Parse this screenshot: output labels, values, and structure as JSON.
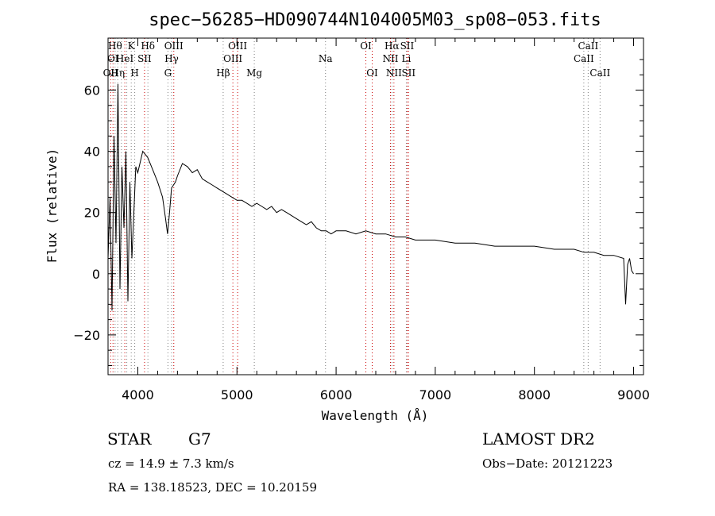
{
  "chart_data": {
    "type": "line",
    "title": "spec−56285−HD090744N104005M03_sp08−053.fits",
    "xlabel": "Wavelength (Å)",
    "ylabel": "Flux (relative)",
    "xlim": [
      3700,
      9100
    ],
    "ylim": [
      -33,
      77
    ],
    "xticks": [
      4000,
      5000,
      6000,
      7000,
      8000,
      9000
    ],
    "xtick_labels": [
      "4000",
      "5000",
      "6000",
      "7000",
      "8000",
      "9000"
    ],
    "yticks": [
      -20,
      0,
      20,
      40,
      60
    ],
    "ytick_labels": [
      "−20",
      "0",
      "20",
      "40",
      "60"
    ],
    "grid": false,
    "series": [
      {
        "x": [
          3700,
          3720,
          3740,
          3760,
          3780,
          3800,
          3820,
          3840,
          3860,
          3880,
          3900,
          3920,
          3940,
          3960,
          3980,
          4000,
          4050,
          4100,
          4150,
          4200,
          4250,
          4280,
          4300,
          4320,
          4340,
          4380,
          4400,
          4450,
          4500,
          4550,
          4600,
          4650,
          4700,
          4750,
          4800,
          4850,
          4900,
          4950,
          5000,
          5050,
          5100,
          5150,
          5200,
          5250,
          5300,
          5350,
          5400,
          5450,
          5500,
          5550,
          5600,
          5650,
          5700,
          5750,
          5800,
          5850,
          5900,
          5950,
          6000,
          6100,
          6200,
          6300,
          6400,
          6500,
          6600,
          6700,
          6800,
          6900,
          7000,
          7200,
          7400,
          7600,
          7800,
          8000,
          8200,
          8400,
          8500,
          8600,
          8700,
          8800,
          8900,
          8920,
          8940,
          8960,
          8980,
          9000
        ],
        "y": [
          5,
          25,
          -12,
          45,
          10,
          62,
          -5,
          35,
          15,
          40,
          -9,
          30,
          5,
          20,
          35,
          33,
          40,
          38,
          34,
          30,
          25,
          18,
          13,
          20,
          28,
          30,
          32,
          36,
          35,
          33,
          34,
          31,
          30,
          29,
          28,
          27,
          26,
          25,
          24,
          24,
          23,
          22,
          23,
          22,
          21,
          22,
          20,
          21,
          20,
          19,
          18,
          17,
          16,
          17,
          15,
          14,
          14,
          13,
          14,
          14,
          13,
          14,
          13,
          13,
          12,
          12,
          11,
          11,
          11,
          10,
          10,
          9,
          9,
          9,
          8,
          8,
          7,
          7,
          6,
          6,
          5,
          -10,
          3,
          5,
          1,
          0
        ]
      }
    ],
    "lines": [
      {
        "x": 3726,
        "color": "#cc0000",
        "label": "OII",
        "row": 2
      },
      {
        "x": 3750,
        "color": "#cc0000",
        "label": "OI",
        "row": 1
      },
      {
        "x": 3771,
        "color": "#808080",
        "label": "Hθ",
        "row": 0
      },
      {
        "x": 3798,
        "color": "#808080",
        "label": "Hη",
        "row": 2
      },
      {
        "x": 3835,
        "color": "#808080",
        "label": "",
        "row": -1
      },
      {
        "x": 3869,
        "color": "#cc0000",
        "label": "HeI",
        "row": 1
      },
      {
        "x": 3889,
        "color": "#808080",
        "label": "",
        "row": -1
      },
      {
        "x": 3934,
        "color": "#808080",
        "label": "K",
        "row": 0
      },
      {
        "x": 3969,
        "color": "#808080",
        "label": "H",
        "row": 2
      },
      {
        "x": 4068,
        "color": "#cc0000",
        "label": "SII",
        "row": 1
      },
      {
        "x": 4102,
        "color": "#808080",
        "label": "Hδ",
        "row": 0
      },
      {
        "x": 4304,
        "color": "#808080",
        "label": "G",
        "row": 2
      },
      {
        "x": 4341,
        "color": "#808080",
        "label": "Hγ",
        "row": 1
      },
      {
        "x": 4363,
        "color": "#cc0000",
        "label": "OIII",
        "row": 0
      },
      {
        "x": 4861,
        "color": "#808080",
        "label": "Hβ",
        "row": 2
      },
      {
        "x": 4959,
        "color": "#cc0000",
        "label": "OIII",
        "row": 1
      },
      {
        "x": 5007,
        "color": "#cc0000",
        "label": "OIII",
        "row": 0
      },
      {
        "x": 5175,
        "color": "#808080",
        "label": "Mg",
        "row": 2
      },
      {
        "x": 5893,
        "color": "#808080",
        "label": "Na",
        "row": 1
      },
      {
        "x": 6300,
        "color": "#cc0000",
        "label": "OI",
        "row": 0
      },
      {
        "x": 6364,
        "color": "#cc0000",
        "label": "OI",
        "row": 2
      },
      {
        "x": 6548,
        "color": "#cc0000",
        "label": "NII",
        "row": 1
      },
      {
        "x": 6563,
        "color": "#808080",
        "label": "Hα",
        "row": 0
      },
      {
        "x": 6583,
        "color": "#cc0000",
        "label": "NII",
        "row": 2
      },
      {
        "x": 6708,
        "color": "#808080",
        "label": "Li",
        "row": 1
      },
      {
        "x": 6716,
        "color": "#cc0000",
        "label": "SII",
        "row": 0
      },
      {
        "x": 6731,
        "color": "#cc0000",
        "label": "SII",
        "row": 2
      },
      {
        "x": 8498,
        "color": "#808080",
        "label": "CaII",
        "row": 1
      },
      {
        "x": 8542,
        "color": "#808080",
        "label": "CaII",
        "row": 0
      },
      {
        "x": 8662,
        "color": "#808080",
        "label": "CaII",
        "row": 2
      }
    ]
  },
  "info": {
    "class": "STAR",
    "subclass": "G7",
    "survey": "LAMOST DR2",
    "cz": "cz = 14.9 ± 7.3 km/s",
    "obs_date": "Obs−Date: 20121223",
    "coords": "RA = 138.18523, DEC =  10.20159"
  }
}
